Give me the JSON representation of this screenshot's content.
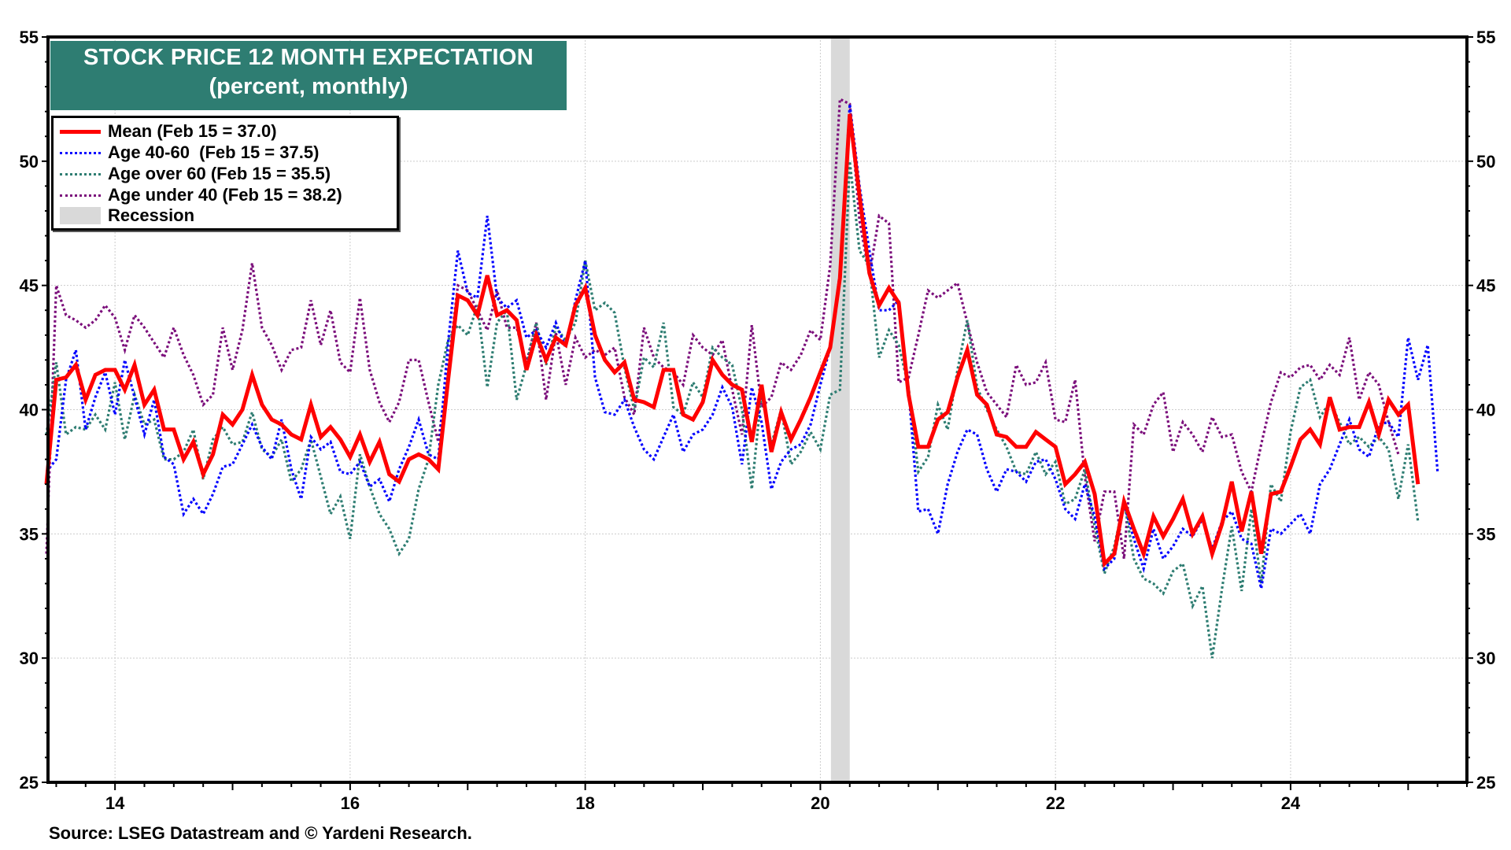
{
  "chart_data": {
    "type": "line",
    "title": "STOCK PRICE 12 MONTH EXPECTATION",
    "subtitle": "(percent, monthly)",
    "xlabel": "",
    "ylabel": "",
    "ylim": [
      25,
      55
    ],
    "y_ticks": [
      25,
      30,
      35,
      40,
      45,
      50,
      55
    ],
    "y_tick_labels": [
      "25",
      "30",
      "35",
      "40",
      "45",
      "50",
      "55"
    ],
    "xlim": [
      2013.43,
      2025.5
    ],
    "x_ticks": [
      2014,
      2016,
      2018,
      2020,
      2022,
      2024
    ],
    "x_tick_labels": [
      "14",
      "16",
      "18",
      "20",
      "22",
      "24"
    ],
    "x_start": "2013-06",
    "x_frequency": "monthly",
    "grid": true,
    "legend_position": "top-left",
    "recession": {
      "label": "Recession",
      "start": 2020.09,
      "end": 2020.25,
      "color": "#d9d9d9"
    },
    "series": [
      {
        "name": "Mean (Feb 15 = 37.0)",
        "color": "#ff0000",
        "style": "solid",
        "values": [
          37.0,
          41.2,
          41.3,
          41.8,
          40.4,
          41.4,
          41.6,
          41.6,
          40.8,
          41.8,
          40.2,
          40.8,
          39.2,
          39.2,
          38.0,
          38.7,
          37.4,
          38.2,
          39.8,
          39.4,
          40.0,
          41.4,
          40.2,
          39.6,
          39.4,
          39.0,
          38.8,
          40.2,
          38.9,
          39.3,
          38.8,
          38.1,
          39.0,
          37.9,
          38.7,
          37.4,
          37.1,
          38.0,
          38.2,
          38.0,
          37.6,
          41.2,
          44.6,
          44.4,
          43.8,
          45.4,
          43.8,
          44.0,
          43.6,
          41.6,
          43.0,
          42.0,
          42.9,
          42.6,
          44.2,
          44.9,
          43.0,
          42.0,
          41.5,
          41.9,
          40.4,
          40.3,
          40.1,
          41.6,
          41.6,
          39.8,
          39.6,
          40.3,
          42.0,
          41.4,
          41.0,
          40.8,
          38.7,
          41.0,
          38.3,
          39.9,
          38.8,
          39.6,
          40.5,
          41.5,
          42.5,
          45.3,
          51.9,
          48.6,
          45.5,
          44.2,
          44.9,
          44.3,
          40.6,
          38.5,
          38.5,
          39.6,
          39.9,
          41.3,
          42.4,
          40.6,
          40.2,
          39.0,
          38.9,
          38.5,
          38.5,
          39.1,
          38.8,
          38.5,
          37.0,
          37.4,
          37.9,
          36.6,
          33.8,
          34.2,
          36.3,
          35.2,
          34.2,
          35.7,
          34.9,
          35.6,
          36.4,
          35.0,
          35.7,
          34.2,
          35.4,
          37.1,
          35.1,
          36.7,
          34.2,
          36.6,
          36.7,
          37.7,
          38.8,
          39.2,
          38.6,
          40.5,
          39.2,
          39.3,
          39.3,
          40.3,
          39.0,
          40.4,
          39.8,
          40.2,
          37.0
        ]
      },
      {
        "name": "Age 40-60  (Feb 15 = 37.5)",
        "color": "#0000ff",
        "style": "dotted",
        "values": [
          37.5,
          38.0,
          41.2,
          42.4,
          39.2,
          40.5,
          41.5,
          39.8,
          42.0,
          40.5,
          39.0,
          40.4,
          38.1,
          37.8,
          35.8,
          36.4,
          35.8,
          36.6,
          37.7,
          37.8,
          38.6,
          39.4,
          38.5,
          38.0,
          39.6,
          37.6,
          36.4,
          38.9,
          38.4,
          38.7,
          37.5,
          37.4,
          37.9,
          36.9,
          37.2,
          36.3,
          37.6,
          38.5,
          39.6,
          38.2,
          38.0,
          42.7,
          46.4,
          44.7,
          44.5,
          47.8,
          44.5,
          44.1,
          44.4,
          42.9,
          43.2,
          42.5,
          43.5,
          42.5,
          44.4,
          46.0,
          41.3,
          39.9,
          39.8,
          40.4,
          39.3,
          38.4,
          38.0,
          38.9,
          39.8,
          38.3,
          39.0,
          39.2,
          39.8,
          40.9,
          40.1,
          37.8,
          40.9,
          39.5,
          36.8,
          37.9,
          38.4,
          38.6,
          39.4,
          41.0,
          42.5,
          45.5,
          52.3,
          49.0,
          46.4,
          44.0,
          44.0,
          44.4,
          40.8,
          35.9,
          36.0,
          35.0,
          37.0,
          38.3,
          39.2,
          39.0,
          37.6,
          36.7,
          37.6,
          37.5,
          37.1,
          37.9,
          38.0,
          37.2,
          36.0,
          35.6,
          37.0,
          35.7,
          33.6,
          34.0,
          36.2,
          34.8,
          33.6,
          35.2,
          34.0,
          34.5,
          35.2,
          34.9,
          35.6,
          34.4,
          35.5,
          35.9,
          34.8,
          34.6,
          32.8,
          35.2,
          35.0,
          35.4,
          35.8,
          35.0,
          37.0,
          37.6,
          38.6,
          39.6,
          38.4,
          38.1,
          39.4,
          39.5,
          38.9,
          42.9,
          41.2,
          42.6,
          37.5
        ]
      },
      {
        "name": "Age over 60 (Feb 15 = 35.5)",
        "color": "#2e7d72",
        "style": "dotted",
        "values": [
          39.0,
          41.9,
          39.0,
          39.3,
          39.2,
          39.8,
          39.2,
          41.1,
          38.8,
          40.6,
          39.4,
          39.6,
          38.0,
          38.0,
          38.3,
          39.2,
          37.2,
          38.8,
          39.3,
          38.6,
          38.7,
          39.9,
          38.4,
          38.1,
          38.8,
          37.1,
          37.6,
          38.8,
          37.3,
          35.8,
          36.5,
          34.8,
          38.2,
          36.9,
          35.8,
          35.2,
          34.2,
          34.8,
          36.8,
          38.0,
          41.0,
          42.8,
          43.4,
          43.0,
          44.2,
          40.9,
          43.5,
          44.0,
          40.4,
          41.8,
          43.5,
          41.8,
          43.3,
          42.8,
          43.5,
          46.0,
          44.0,
          44.3,
          43.9,
          41.7,
          40.0,
          42.1,
          41.7,
          43.5,
          40.1,
          39.8,
          41.1,
          40.5,
          42.5,
          42.1,
          41.8,
          40.0,
          36.8,
          40.7,
          38.6,
          40.0,
          37.8,
          38.3,
          39.1,
          38.4,
          40.6,
          40.8,
          50.0,
          46.4,
          45.8,
          42.1,
          43.2,
          42.6,
          40.9,
          37.5,
          38.1,
          40.2,
          39.2,
          41.6,
          43.6,
          40.9,
          40.0,
          39.2,
          38.5,
          37.5,
          37.4,
          38.3,
          37.4,
          37.9,
          36.2,
          36.4,
          37.6,
          35.3,
          33.4,
          34.5,
          36.3,
          34.0,
          33.2,
          33.0,
          32.6,
          33.5,
          33.8,
          32.1,
          32.9,
          30.0,
          32.8,
          35.3,
          32.7,
          36.0,
          33.0,
          37.0,
          36.3,
          39.1,
          40.9,
          41.2,
          39.7,
          40.3,
          39.5,
          38.6,
          38.9,
          38.5,
          38.9,
          38.4,
          36.4,
          38.6,
          35.5
        ]
      },
      {
        "name": "Age under 40 (Feb 15 = 38.2)",
        "color": "#7b0e7b",
        "style": "dotted",
        "values": [
          34.2,
          45.0,
          43.8,
          43.6,
          43.3,
          43.6,
          44.2,
          43.7,
          42.4,
          43.8,
          43.3,
          42.7,
          42.1,
          43.3,
          42.2,
          41.4,
          40.2,
          40.6,
          43.3,
          41.6,
          43.2,
          45.9,
          43.3,
          42.6,
          41.6,
          42.4,
          42.5,
          44.4,
          42.6,
          44.0,
          41.9,
          41.5,
          44.5,
          41.6,
          40.3,
          39.5,
          40.3,
          42.0,
          42.0,
          40.3,
          38.7,
          41.7,
          45.0,
          44.8,
          44.0,
          43.2,
          44.8,
          43.3,
          43.3,
          41.9,
          43.5,
          40.4,
          43.1,
          41.0,
          42.9,
          42.1,
          42.4,
          42.2,
          42.5,
          40.5,
          39.8,
          43.3,
          42.1,
          41.7,
          41.5,
          41.0,
          43.0,
          42.5,
          42.2,
          42.8,
          40.8,
          39.0,
          43.4,
          40.1,
          40.5,
          41.9,
          41.6,
          42.2,
          43.2,
          42.8,
          45.8,
          52.5,
          52.3,
          47.6,
          45.4,
          47.8,
          47.5,
          41.1,
          41.3,
          43.0,
          44.8,
          44.5,
          44.8,
          45.1,
          43.5,
          41.9,
          40.7,
          40.2,
          39.7,
          41.8,
          41.0,
          41.1,
          41.9,
          39.6,
          39.5,
          41.2,
          37.3,
          34.7,
          36.7,
          36.7,
          34.0,
          39.4,
          39.0,
          40.2,
          40.7,
          38.3,
          39.5,
          39.0,
          38.3,
          39.7,
          38.9,
          39.0,
          37.5,
          36.7,
          38.6,
          40.3,
          41.5,
          41.3,
          41.7,
          41.8,
          41.2,
          41.8,
          41.4,
          42.9,
          40.4,
          41.5,
          41.0,
          39.5,
          38.2
        ]
      }
    ]
  },
  "header": {
    "title": "STOCK PRICE 12 MONTH EXPECTATION",
    "subtitle": "(percent, monthly)"
  },
  "legend": {
    "items": [
      {
        "label": "Mean (Feb 15 = 37.0)",
        "color": "#ff0000",
        "style": "solid"
      },
      {
        "label": "Age 40-60  (Feb 15 = 37.5)",
        "color": "#0000ff",
        "style": "dotted"
      },
      {
        "label": "Age over 60 (Feb 15 = 35.5)",
        "color": "#2e7d72",
        "style": "dotted"
      },
      {
        "label": "Age under 40 (Feb 15 = 38.2)",
        "color": "#7b0e7b",
        "style": "dotted"
      },
      {
        "label": "Recession",
        "color": "#d9d9d9",
        "style": "box"
      }
    ]
  },
  "footer": {
    "source": "Source: LSEG Datastream and © Yardeni Research."
  }
}
